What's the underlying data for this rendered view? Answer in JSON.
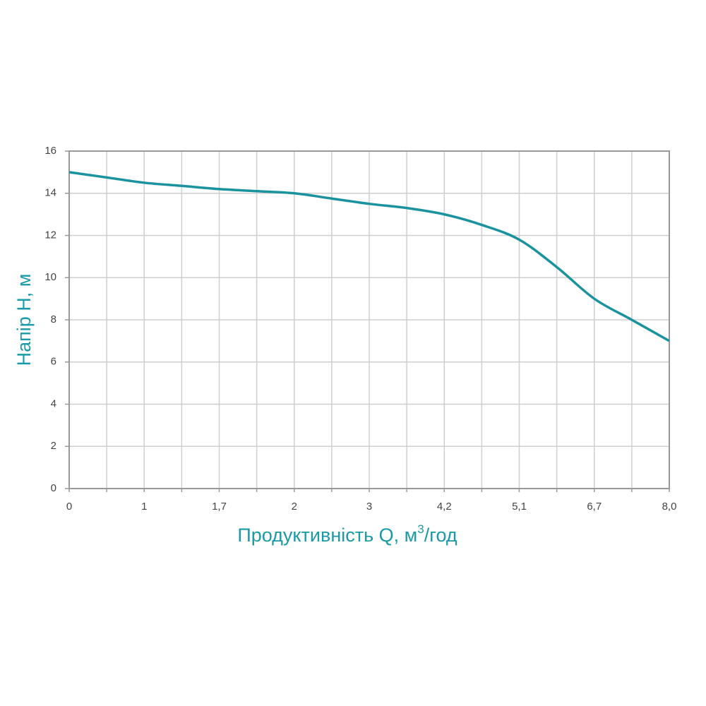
{
  "chart_data": {
    "type": "line",
    "x_label": [
      "Продуктивність Q, м",
      "3",
      "/год"
    ],
    "y_label": "Напір H, м",
    "categories": [
      "0",
      null,
      "1",
      null,
      "1,7",
      null,
      "2",
      null,
      "3",
      null,
      "4,2",
      null,
      "5,1",
      null,
      "6,7",
      null,
      "8,0"
    ],
    "series": [
      {
        "color": "#1b939e",
        "values": [
          15,
          14.75,
          14.5,
          14.35,
          14.2,
          14.1,
          14,
          13.75,
          13.5,
          13.3,
          13,
          12.5,
          11.8,
          10.5,
          9,
          8,
          7
        ]
      }
    ],
    "ylim": [
      0,
      16
    ],
    "yticks": [
      0,
      2,
      4,
      6,
      8,
      10,
      12,
      14,
      16
    ],
    "grid": true
  }
}
